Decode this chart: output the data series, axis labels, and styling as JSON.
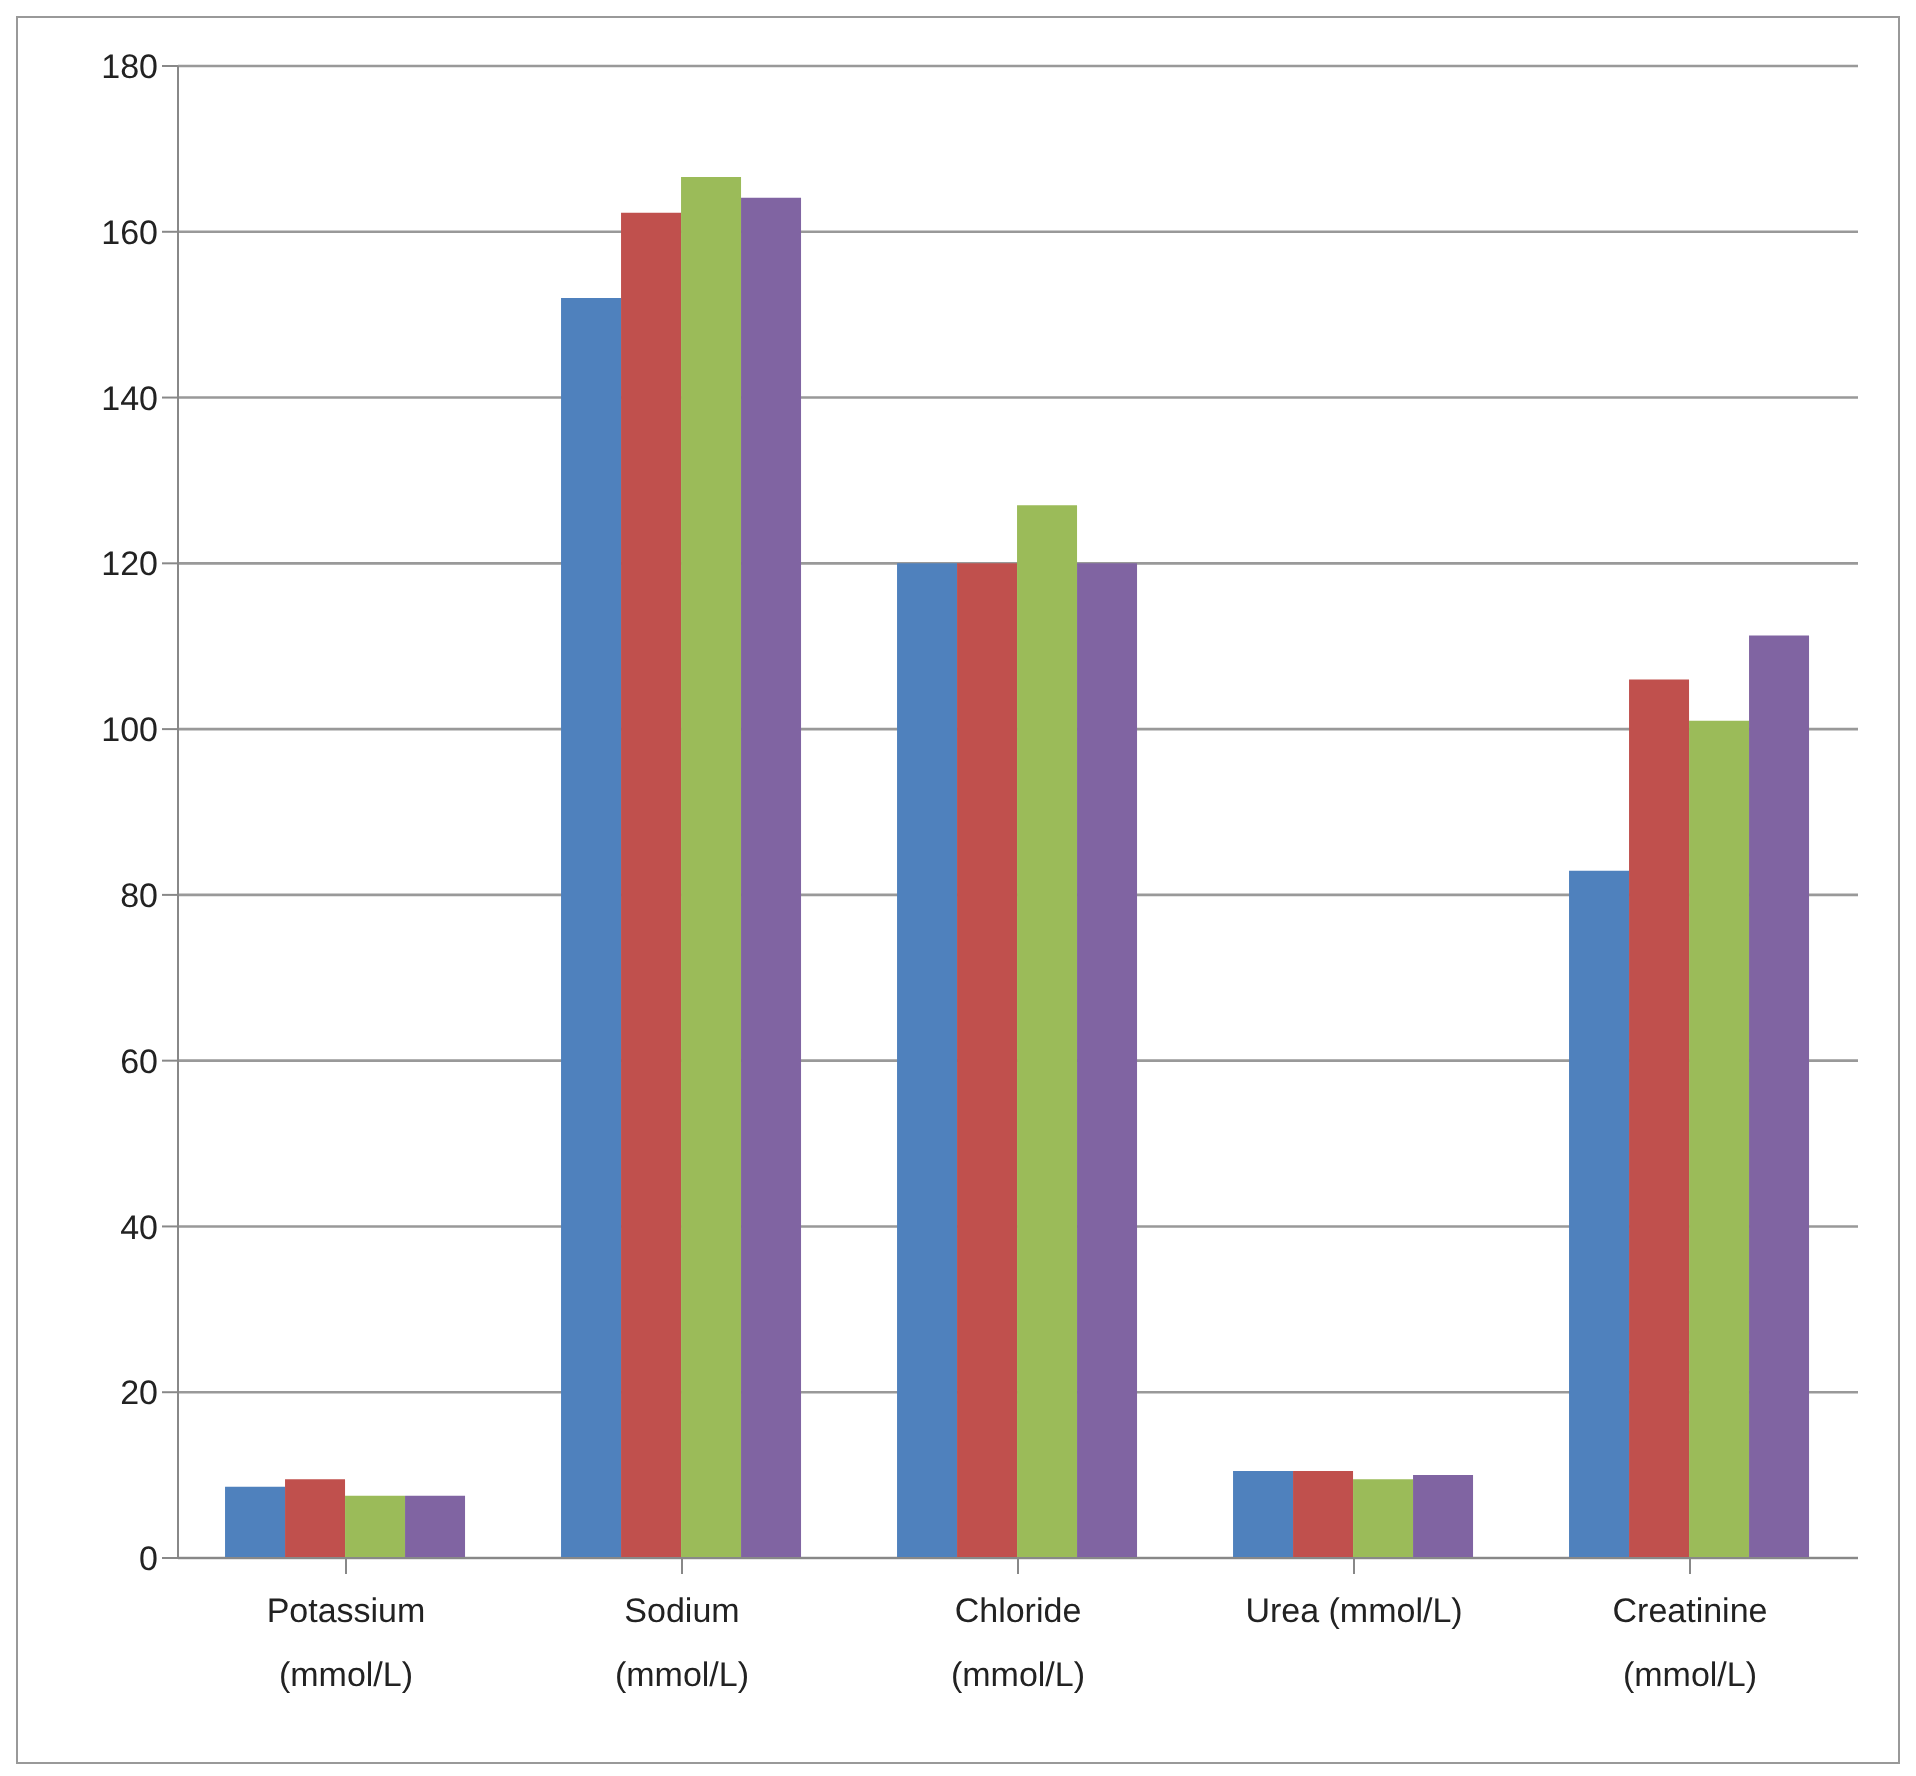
{
  "chart_data": {
    "type": "bar",
    "categories": [
      "Potassium (mmol/L)",
      "Sodium (mmol/L)",
      "Chloride (mmol/L)",
      "Urea (mmol/L)",
      "Creatinine (mmol/L)"
    ],
    "series": [
      {
        "color": "#4f81bd",
        "values": [
          8.6,
          152,
          120,
          10.5,
          82.9
        ]
      },
      {
        "color": "#c0504d",
        "values": [
          9.5,
          162.3,
          120,
          10.5,
          106
        ]
      },
      {
        "color": "#9bbb59",
        "values": [
          7.5,
          166.6,
          127,
          9.5,
          101
        ]
      },
      {
        "color": "#8064a2",
        "values": [
          7.5,
          164.1,
          120,
          10,
          111.3
        ]
      }
    ],
    "ylim": [
      0,
      180
    ],
    "yticks": [
      0,
      20,
      40,
      60,
      80,
      100,
      120,
      140,
      160,
      180
    ],
    "grid": "y",
    "legend": false
  }
}
